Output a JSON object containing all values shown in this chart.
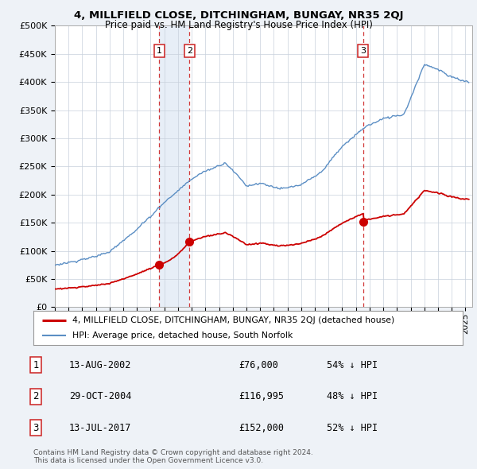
{
  "title1": "4, MILLFIELD CLOSE, DITCHINGHAM, BUNGAY, NR35 2QJ",
  "title2": "Price paid vs. HM Land Registry's House Price Index (HPI)",
  "ylim": [
    0,
    500000
  ],
  "yticks": [
    0,
    50000,
    100000,
    150000,
    200000,
    250000,
    300000,
    350000,
    400000,
    450000,
    500000
  ],
  "ytick_labels": [
    "£0",
    "£50K",
    "£100K",
    "£150K",
    "£200K",
    "£250K",
    "£300K",
    "£350K",
    "£400K",
    "£450K",
    "£500K"
  ],
  "xlim_start": 1995.0,
  "xlim_end": 2025.5,
  "xticks": [
    1995,
    1996,
    1997,
    1998,
    1999,
    2000,
    2001,
    2002,
    2003,
    2004,
    2005,
    2006,
    2007,
    2008,
    2009,
    2010,
    2011,
    2012,
    2013,
    2014,
    2015,
    2016,
    2017,
    2018,
    2019,
    2020,
    2021,
    2022,
    2023,
    2024,
    2025
  ],
  "sale_dates": [
    2002.617,
    2004.831,
    2017.533
  ],
  "sale_prices": [
    76000,
    116995,
    152000
  ],
  "sale_labels": [
    "1",
    "2",
    "3"
  ],
  "hpi_color": "#5b8ec4",
  "red_color": "#cc0000",
  "marker_color": "#cc0000",
  "vline_color": "#cc2222",
  "shade_color": "#dde8f5",
  "background_color": "#eef2f7",
  "plot_bg": "#ffffff",
  "legend_label_red": "4, MILLFIELD CLOSE, DITCHINGHAM, BUNGAY, NR35 2QJ (detached house)",
  "legend_label_blue": "HPI: Average price, detached house, South Norfolk",
  "table_data": [
    [
      "1",
      "13-AUG-2002",
      "£76,000",
      "54% ↓ HPI"
    ],
    [
      "2",
      "29-OCT-2004",
      "£116,995",
      "48% ↓ HPI"
    ],
    [
      "3",
      "13-JUL-2017",
      "£152,000",
      "52% ↓ HPI"
    ]
  ],
  "footnote": "Contains HM Land Registry data © Crown copyright and database right 2024.\nThis data is licensed under the Open Government Licence v3.0."
}
